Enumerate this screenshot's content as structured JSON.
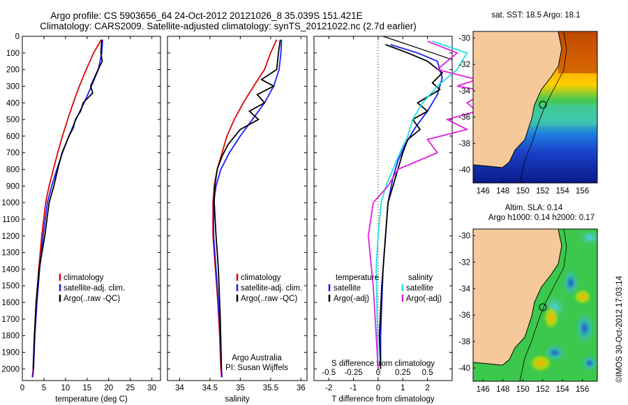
{
  "header": {
    "line1": "Argo profile: CS 5903656_64 24-Oct-2012 20121026_8 35.039S 151.421E",
    "line2": "Climatology: CARS2009. Satellite-adjusted climatology: synTS_20121022.nc (2.7d earlier)"
  },
  "colors": {
    "climatology": "#e00000",
    "satellite": "#1a1aff",
    "argo": "#000000",
    "salinity_satellite": "#20e0e0",
    "salinity_argo": "#e020e0"
  },
  "chart_data": [
    {
      "type": "line",
      "panel": "temperature",
      "xlabel": "temperature (deg C)",
      "ylabel": "",
      "xlim": [
        0,
        32
      ],
      "ylim": [
        2070,
        0
      ],
      "xticks": [
        0,
        5,
        10,
        15,
        20,
        25,
        30
      ],
      "yticks": [
        0,
        100,
        200,
        300,
        400,
        500,
        600,
        700,
        800,
        900,
        1000,
        1100,
        1200,
        1300,
        1400,
        1500,
        1600,
        1700,
        1800,
        1900,
        2000
      ],
      "legend": [
        "climatology",
        "satellite-adj. clim.",
        "Argo(..raw -QC)"
      ],
      "series": [
        {
          "name": "climatology",
          "x": [
            18.3,
            16.5,
            14.8,
            13.2,
            11.8,
            10.5,
            9.3,
            8.2,
            7.2,
            6.2,
            5.4,
            4.5,
            3.8,
            3.2,
            2.8,
            2.5,
            2.3
          ],
          "y": [
            20,
            100,
            200,
            300,
            400,
            500,
            600,
            700,
            800,
            900,
            1000,
            1200,
            1400,
            1600,
            1800,
            2000,
            2050
          ]
        },
        {
          "name": "satellite-adj. clim.",
          "x": [
            18.6,
            18.4,
            17.6,
            16.0,
            14.3,
            12.4,
            10.8,
            9.3,
            8.0,
            6.8,
            5.8,
            4.8,
            4.0,
            3.4,
            2.9,
            2.6,
            2.4
          ],
          "y": [
            20,
            100,
            200,
            300,
            400,
            500,
            600,
            700,
            800,
            900,
            1000,
            1200,
            1400,
            1600,
            1800,
            2000,
            2050
          ]
        },
        {
          "name": "Argo(..raw -QC)",
          "x": [
            18.4,
            18.2,
            18.5,
            17.2,
            15.8,
            16.3,
            14.1,
            13.5,
            12.3,
            11.8,
            10.8,
            10.0,
            9.2,
            8.2,
            7.3,
            6.2,
            5.2,
            3.9,
            3.2,
            2.8,
            2.5
          ],
          "y": [
            20,
            100,
            150,
            220,
            300,
            340,
            400,
            450,
            500,
            550,
            600,
            650,
            700,
            800,
            900,
            1000,
            1200,
            1400,
            1600,
            1800,
            2000
          ]
        }
      ]
    },
    {
      "type": "line",
      "panel": "salinity",
      "xlabel": "salinity",
      "xlim": [
        33.8,
        36.1
      ],
      "ylim": [
        2070,
        0
      ],
      "xticks": [
        34,
        34.5,
        35,
        35.5,
        36
      ],
      "legend": [
        "climatology",
        "satellite-adj. clim.",
        "Argo(..raw -QC)"
      ],
      "annotation": [
        "Argo Australia",
        "PI: Susan Wijffels"
      ],
      "series": [
        {
          "name": "climatology",
          "x": [
            35.6,
            35.5,
            35.4,
            35.22,
            35.05,
            34.9,
            34.78,
            34.7,
            34.62,
            34.57,
            34.55,
            34.55,
            34.59,
            34.63,
            34.66,
            34.68,
            34.69
          ],
          "y": [
            20,
            100,
            200,
            300,
            400,
            500,
            600,
            700,
            800,
            900,
            1000,
            1200,
            1400,
            1600,
            1800,
            2000,
            2050
          ]
        },
        {
          "name": "satellite-adj. clim.",
          "x": [
            35.68,
            35.67,
            35.64,
            35.55,
            35.4,
            35.2,
            35.0,
            34.82,
            34.68,
            34.6,
            34.56,
            34.56,
            34.6,
            34.64,
            34.67,
            34.69,
            34.7
          ],
          "y": [
            20,
            100,
            200,
            300,
            400,
            500,
            600,
            700,
            800,
            900,
            1000,
            1200,
            1400,
            1600,
            1800,
            2000,
            2050
          ]
        },
        {
          "name": "Argo(..raw -QC)",
          "x": [
            35.66,
            35.63,
            35.6,
            35.35,
            35.55,
            35.28,
            35.4,
            35.15,
            35.3,
            35.0,
            34.8,
            34.7,
            34.62,
            34.58,
            34.57,
            34.6,
            34.64,
            34.67,
            34.69
          ],
          "y": [
            20,
            100,
            200,
            260,
            300,
            350,
            400,
            450,
            500,
            560,
            650,
            720,
            800,
            900,
            1000,
            1200,
            1400,
            1700,
            2000
          ]
        }
      ]
    },
    {
      "type": "line",
      "panel": "difference",
      "xlabel": "T difference from climatology",
      "xlabel_top": "S difference from climatology",
      "xlim": [
        -2.6,
        3.0
      ],
      "ylim": [
        2070,
        0
      ],
      "xticks": [
        -2,
        -1,
        0,
        1,
        2
      ],
      "xticks_s": [
        -0.5,
        -0.25,
        0,
        0.25,
        0.5
      ],
      "legend_temperature": [
        "temperature",
        "satellite",
        "Argo(-adj)"
      ],
      "legend_salinity": [
        "salinity",
        "satellite",
        "Argo(-adj)"
      ],
      "series": [
        {
          "name": "satellite",
          "group": "temperature",
          "x": [
            0.5,
            1.6,
            2.4,
            2.6,
            2.4,
            2.0,
            1.5,
            1.1,
            0.8,
            0.6,
            0.4,
            0.3,
            0.2,
            0.15,
            0.1,
            0.1
          ],
          "y": [
            50,
            100,
            150,
            250,
            350,
            450,
            550,
            650,
            750,
            850,
            1000,
            1200,
            1400,
            1600,
            1800,
            2000
          ]
        },
        {
          "name": "Argo(-adj)",
          "group": "temperature",
          "x": [
            0.3,
            1.2,
            2.0,
            2.6,
            2.2,
            2.5,
            1.6,
            2.0,
            1.4,
            1.7,
            1.2,
            1.0,
            0.7,
            0.4,
            0.3,
            0.15,
            0.05,
            0.1
          ],
          "y": [
            50,
            100,
            150,
            220,
            280,
            320,
            400,
            450,
            500,
            560,
            620,
            700,
            850,
            1000,
            1200,
            1500,
            1800,
            2000
          ]
        },
        {
          "name": "satellite",
          "group": "salinity",
          "x": [
            0.55,
            0.9,
            0.8,
            0.6,
            0.45,
            0.35,
            0.3,
            0.22,
            0.15,
            0.08,
            0.03,
            0.0,
            -0.02,
            -0.01,
            0.0
          ],
          "y": [
            30,
            100,
            200,
            300,
            400,
            500,
            600,
            700,
            800,
            900,
            1000,
            1200,
            1400,
            1700,
            2000
          ]
        },
        {
          "name": "Argo(-adj)",
          "group": "salinity",
          "x": [
            0.5,
            0.8,
            0.6,
            1.0,
            0.8,
            1.1,
            0.9,
            1.0,
            0.7,
            0.9,
            0.5,
            0.6,
            0.2,
            0.1,
            -0.05,
            -0.1,
            -0.05,
            0.0
          ],
          "y": [
            30,
            100,
            200,
            260,
            300,
            330,
            400,
            450,
            500,
            560,
            620,
            700,
            800,
            900,
            1000,
            1200,
            1500,
            2000
          ]
        }
      ]
    }
  ],
  "maps": [
    {
      "title": "sat. SST: 18.5 Argo: 18.1",
      "xticks": [
        "146",
        "148",
        "150",
        "152",
        "154",
        "156"
      ],
      "yticks": [
        "-30",
        "-32",
        "-34",
        "-36",
        "-38",
        "-40"
      ],
      "xlim": [
        145,
        157.5
      ],
      "ylim": [
        -41,
        -29.5
      ],
      "profile_location": {
        "lon": 151.421,
        "lat": -35.039
      }
    },
    {
      "title_line1": "Altim. SLA: 0.14",
      "title_line2": "Argo h1000: 0.14 h2000: 0.17",
      "xticks": [
        "146",
        "148",
        "150",
        "152",
        "154",
        "156"
      ],
      "yticks": [
        "-30",
        "-32",
        "-34",
        "-36",
        "-38",
        "-40"
      ],
      "xlim": [
        145,
        157.5
      ],
      "ylim": [
        -41,
        -29.5
      ],
      "profile_location": {
        "lon": 151.421,
        "lat": -35.039
      }
    }
  ],
  "footer": {
    "credit": "©IMOS 30-Oct-2012 17:03:14"
  }
}
